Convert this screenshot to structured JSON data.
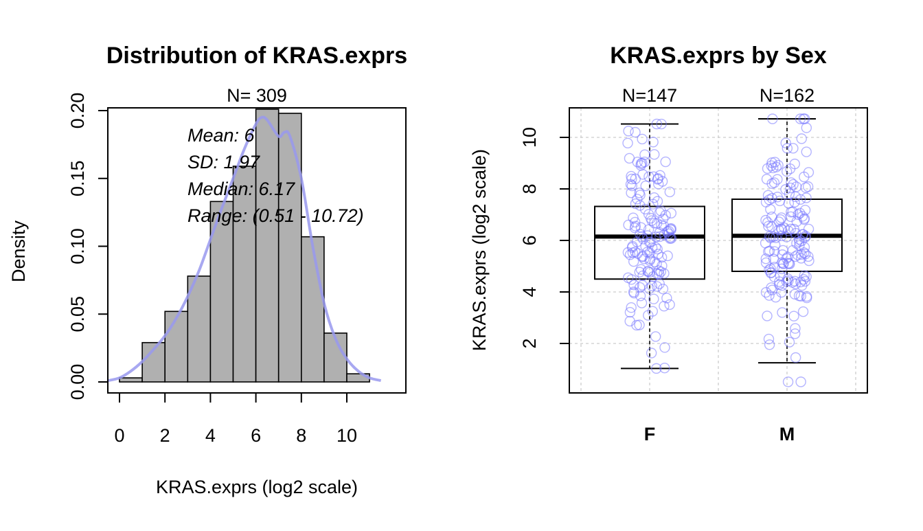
{
  "chart_data": [
    {
      "type": "bar",
      "title": "Distribution of KRAS.exprs",
      "subtitle": "N= 309",
      "xlabel": "KRAS.exprs (log2 scale)",
      "ylabel": "Density",
      "xlim": [
        0,
        11
      ],
      "ylim": [
        0,
        0.2
      ],
      "x_ticks": [
        "0",
        "2",
        "4",
        "6",
        "8",
        "10"
      ],
      "y_ticks": [
        "0.00",
        "0.05",
        "0.10",
        "0.15",
        "0.20"
      ],
      "bins": [
        {
          "start": 0,
          "end": 1,
          "density": 0.003
        },
        {
          "start": 1,
          "end": 2,
          "density": 0.029
        },
        {
          "start": 2,
          "end": 3,
          "density": 0.052
        },
        {
          "start": 3,
          "end": 4,
          "density": 0.078
        },
        {
          "start": 4,
          "end": 5,
          "density": 0.133
        },
        {
          "start": 5,
          "end": 6,
          "density": 0.159
        },
        {
          "start": 6,
          "end": 7,
          "density": 0.201
        },
        {
          "start": 7,
          "end": 8,
          "density": 0.198
        },
        {
          "start": 8,
          "end": 9,
          "density": 0.107
        },
        {
          "start": 9,
          "end": 10,
          "density": 0.036
        },
        {
          "start": 10,
          "end": 11,
          "density": 0.006
        }
      ],
      "density_curve": {
        "x": [
          -0.5,
          0,
          0.5,
          1,
          1.5,
          2,
          2.5,
          3,
          3.5,
          4,
          4.5,
          5,
          5.5,
          6,
          6.25,
          6.5,
          7,
          7.25,
          7.5,
          8,
          8.5,
          9,
          9.5,
          10,
          10.5,
          11,
          11.5
        ],
        "y": [
          0.001,
          0.003,
          0.008,
          0.015,
          0.024,
          0.034,
          0.047,
          0.063,
          0.082,
          0.105,
          0.128,
          0.15,
          0.172,
          0.19,
          0.195,
          0.193,
          0.181,
          0.184,
          0.181,
          0.15,
          0.1,
          0.058,
          0.032,
          0.017,
          0.008,
          0.003,
          0.001
        ]
      },
      "annotations": [
        "Mean: 6",
        "SD: 1.97",
        "Median: 6.17",
        "Range: (0.51 - 10.72)"
      ],
      "colors": {
        "bar_fill": "#b0b0b0",
        "density_line": "#9999ee"
      }
    },
    {
      "type": "boxplot",
      "title": "KRAS.exprs by Sex",
      "xlabel": "",
      "ylabel": "KRAS.exprs  (log2 scale)",
      "ylim": [
        0.2,
        11.2
      ],
      "y_ticks": [
        "2",
        "4",
        "6",
        "8",
        "10"
      ],
      "grid": true,
      "categories": [
        "F",
        "M"
      ],
      "counts": [
        "N=147",
        "N=162"
      ],
      "boxes": [
        {
          "name": "F",
          "min": 1.03,
          "q1": 4.5,
          "median": 6.15,
          "q3": 7.32,
          "max": 10.52
        },
        {
          "name": "M",
          "min": 1.25,
          "q1": 4.8,
          "median": 6.18,
          "q3": 7.6,
          "max": 10.72
        }
      ],
      "points": [
        {
          "group": "F",
          "n": 147,
          "range": [
            1.03,
            10.52
          ],
          "center": 6.0,
          "spread": 1.95
        },
        {
          "group": "M",
          "n": 162,
          "range": [
            0.51,
            10.72
          ],
          "center": 6.0,
          "spread": 2.0
        }
      ],
      "colors": {
        "points": "#7777ff",
        "grid": "#cccccc"
      }
    }
  ]
}
